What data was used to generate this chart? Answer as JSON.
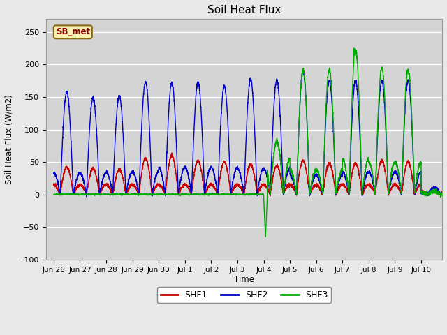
{
  "title": "Soil Heat Flux",
  "ylabel": "Soil Heat Flux (W/m2)",
  "xlabel": "Time",
  "ylim": [
    -100,
    270
  ],
  "yticks": [
    -100,
    -50,
    0,
    50,
    100,
    150,
    200,
    250
  ],
  "fig_bg": "#e8e8e8",
  "plot_bg": "#d4d4d4",
  "shf1_color": "#cc0000",
  "shf2_color": "#0000cc",
  "shf3_color": "#00aa00",
  "legend_label1": "SHF1",
  "legend_label2": "SHF2",
  "legend_label3": "SHF3",
  "watermark": "SB_met",
  "tick_labels": [
    "Jun 26",
    "Jun 27",
    "Jun 28",
    "Jun 29",
    "Jun 30",
    "Jul 1",
    "Jul 2",
    "Jul 3",
    "Jul 4",
    "Jul 5",
    "Jul 6",
    "Jul 7",
    "Jul 8",
    "Jul 9",
    "Jul 10"
  ],
  "line_width": 1.0
}
